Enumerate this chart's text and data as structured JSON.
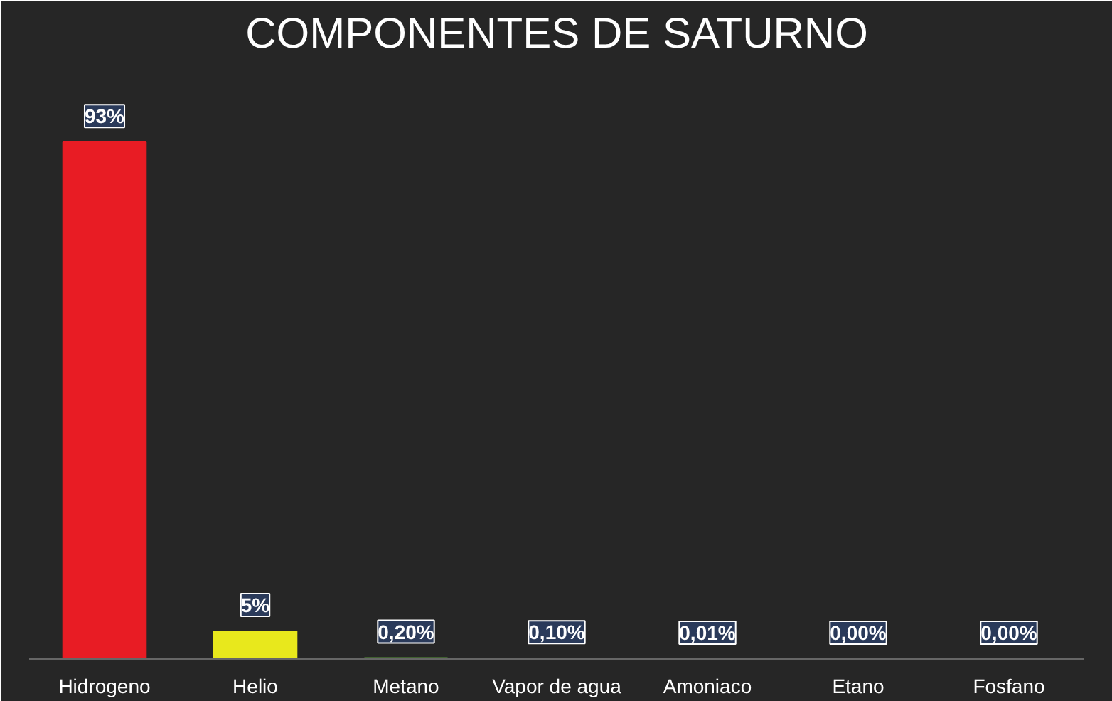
{
  "chart_data": {
    "type": "bar",
    "title": "COMPONENTES DE SATURNO",
    "categories": [
      "Hidrogeno",
      "Helio",
      "Metano",
      "Vapor de agua",
      "Amoniaco",
      "Etano",
      "Fosfano"
    ],
    "values": [
      93,
      5,
      0.2,
      0.1,
      0.01,
      0.0,
      0.0
    ],
    "value_labels": [
      "93%",
      "5%",
      "0,20%",
      "0,10%",
      "0,01%",
      "0,00%",
      "0,00%"
    ],
    "colors": [
      "#e81c24",
      "#e8e81c",
      "#5a9a3a",
      "#1a7a4a",
      "#4a1a8a",
      "#2a8ac8",
      "#101838"
    ],
    "grid": false
  }
}
